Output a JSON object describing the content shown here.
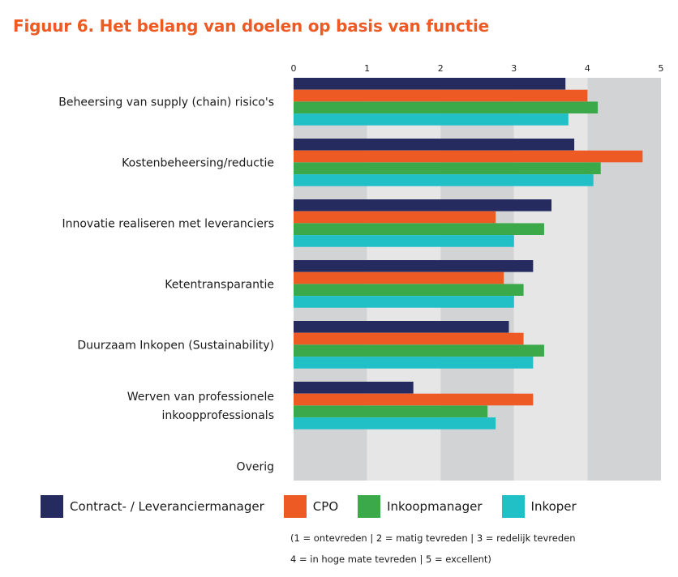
{
  "title": "Figuur 6. Het belang van doelen op basis van functie",
  "legend_note_line1": "(1 = ontevreden | 2 = matig tevreden | 3 = redelijk tevreden",
  "legend_note_line2": "4 = in hoge mate tevreden | 5 = excellent)",
  "colors": {
    "title": "#ee5a24",
    "band_dark": "#d2d3d5",
    "band_light": "#e6e6e7"
  },
  "chart_data": {
    "type": "bar",
    "orientation": "horizontal",
    "xlim": [
      0,
      5
    ],
    "xticks": [
      0,
      1,
      2,
      3,
      4,
      5
    ],
    "categories": [
      [
        "Beheersing van supply (chain) risico's"
      ],
      [
        "Kostenbeheersing/reductie"
      ],
      [
        "Innovatie realiseren met leveranciers"
      ],
      [
        "Ketentransparantie"
      ],
      [
        "Duurzaam Inkopen (Sustainability)"
      ],
      [
        "Werven van professionele",
        "inkoopprofessionals"
      ],
      [
        "Overig"
      ]
    ],
    "series": [
      {
        "name": "Contract- / Leveranciermanager",
        "color": "#252b5f",
        "values": [
          3.7,
          3.82,
          3.51,
          3.26,
          2.93,
          1.63,
          null
        ]
      },
      {
        "name": "CPO",
        "color": "#ee5a24",
        "values": [
          4.0,
          4.75,
          2.75,
          2.86,
          3.13,
          3.26,
          null
        ]
      },
      {
        "name": "Inkoopmanager",
        "color": "#3ba84a",
        "values": [
          4.14,
          4.18,
          3.41,
          3.13,
          3.41,
          2.64,
          null
        ]
      },
      {
        "name": "Inkoper",
        "color": "#21bfc6",
        "values": [
          3.74,
          4.08,
          3.0,
          3.0,
          3.26,
          2.75,
          null
        ]
      }
    ]
  }
}
